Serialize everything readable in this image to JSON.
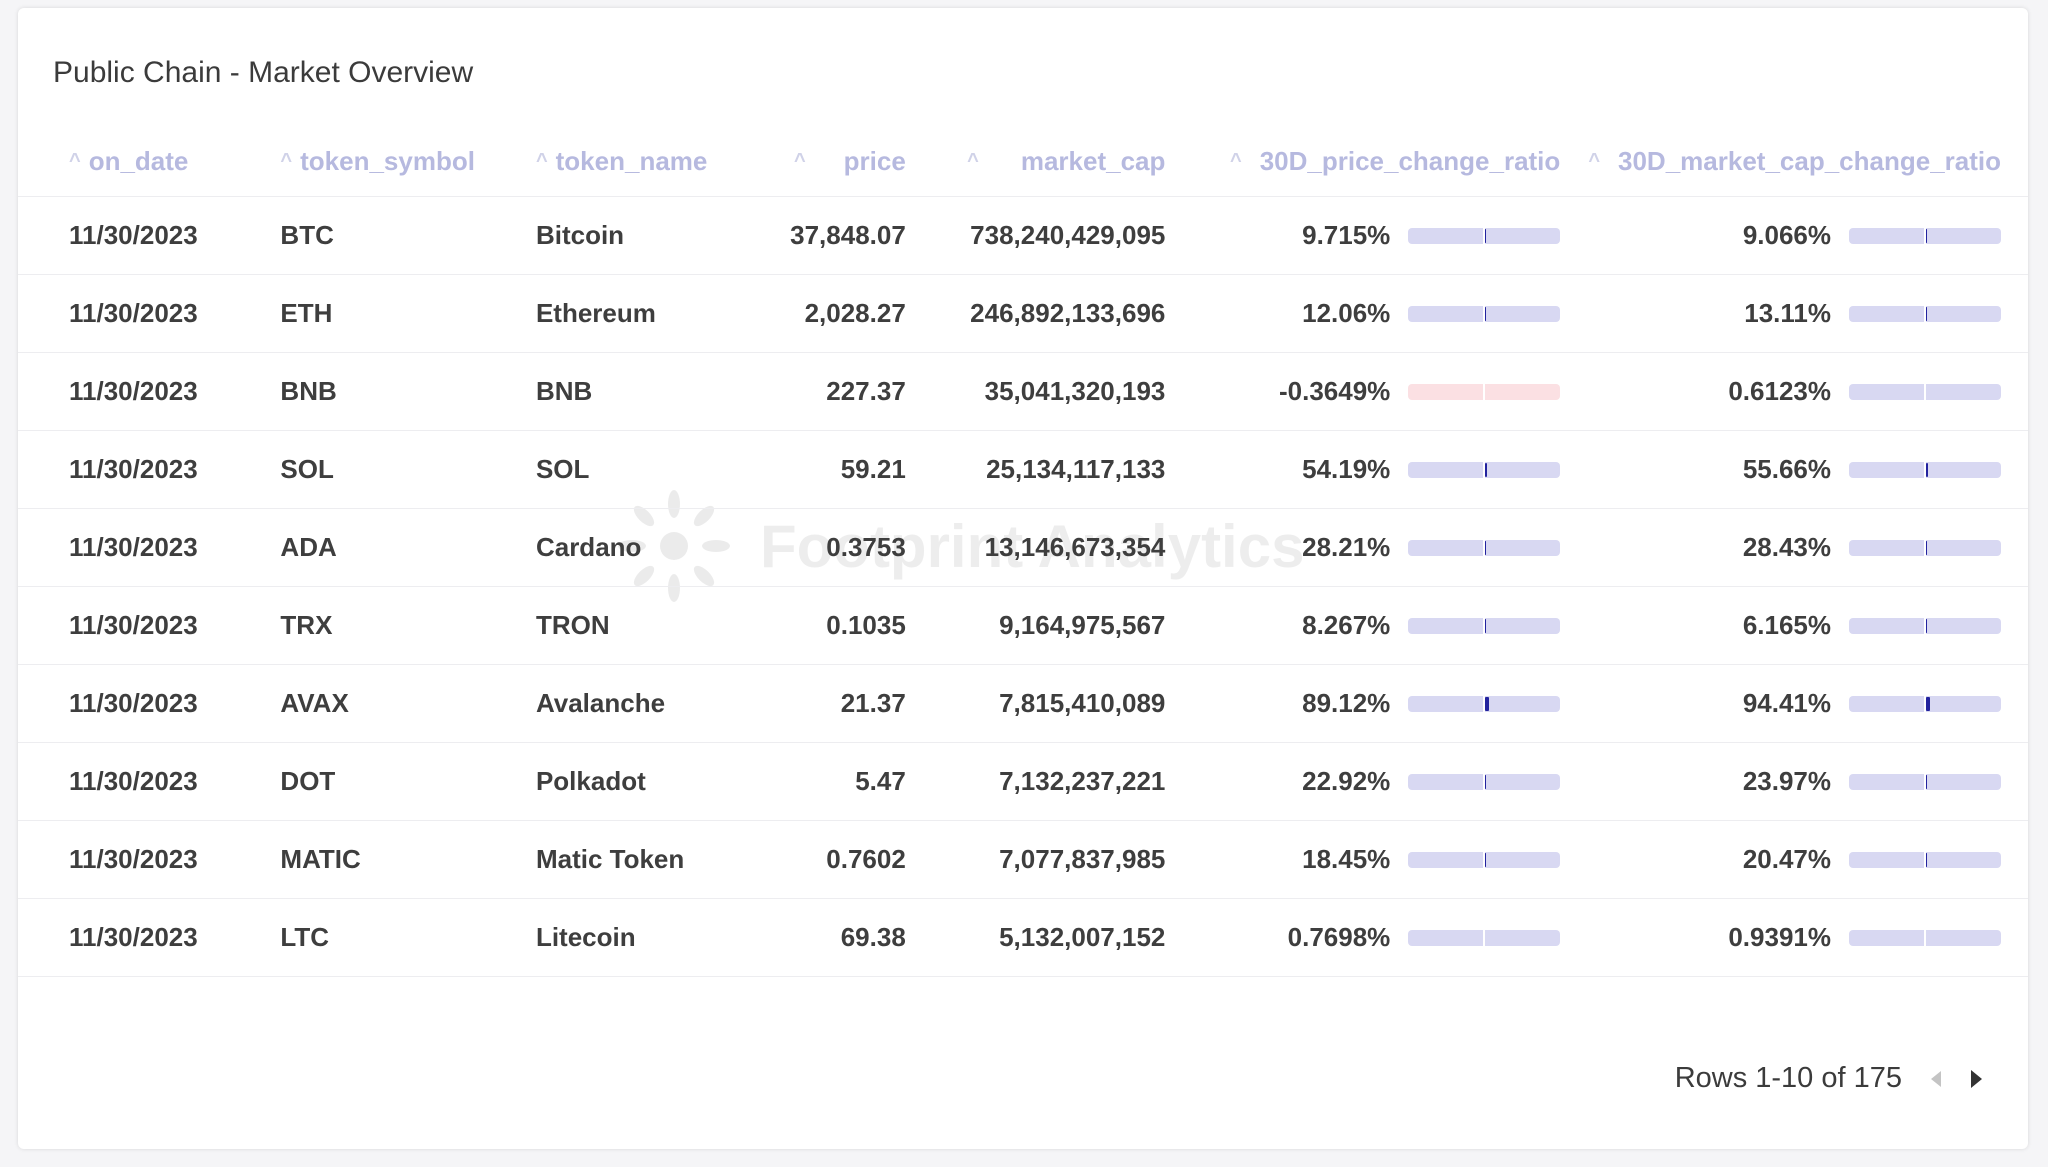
{
  "card": {
    "title": "Public Chain - Market Overview",
    "watermark": "Footprint Analytics"
  },
  "table": {
    "columns": [
      {
        "key": "on_date",
        "label": "on_date"
      },
      {
        "key": "token_symbol",
        "label": "token_symbol"
      },
      {
        "key": "token_name",
        "label": "token_name"
      },
      {
        "key": "price",
        "label": "price"
      },
      {
        "key": "market_cap",
        "label": "market_cap"
      },
      {
        "key": "price_change",
        "label": "30D_price_change_ratio"
      },
      {
        "key": "mcap_change",
        "label": "30D_market_cap_change_ratio"
      }
    ],
    "bar_colors": {
      "positive_track": "#d8d8f2",
      "negative_track": "#fbe0e3",
      "fill": "#23239e"
    },
    "rows": [
      {
        "on_date": "11/30/2023",
        "token_symbol": "BTC",
        "token_name": "Bitcoin",
        "price": "37,848.07",
        "market_cap": "738,240,429,095",
        "price_change": "9.715%",
        "mcap_change": "9.066%",
        "price_change_value": 0.09715,
        "mcap_change_value": 0.09066
      },
      {
        "on_date": "11/30/2023",
        "token_symbol": "ETH",
        "token_name": "Ethereum",
        "price": "2,028.27",
        "market_cap": "246,892,133,696",
        "price_change": "12.06%",
        "mcap_change": "13.11%",
        "price_change_value": 0.1206,
        "mcap_change_value": 0.1311
      },
      {
        "on_date": "11/30/2023",
        "token_symbol": "BNB",
        "token_name": "BNB",
        "price": "227.37",
        "market_cap": "35,041,320,193",
        "price_change": "-0.3649%",
        "mcap_change": "0.6123%",
        "price_change_value": -0.003649,
        "mcap_change_value": 0.006123
      },
      {
        "on_date": "11/30/2023",
        "token_symbol": "SOL",
        "token_name": "SOL",
        "price": "59.21",
        "market_cap": "25,134,117,133",
        "price_change": "54.19%",
        "mcap_change": "55.66%",
        "price_change_value": 0.5419,
        "mcap_change_value": 0.5566
      },
      {
        "on_date": "11/30/2023",
        "token_symbol": "ADA",
        "token_name": "Cardano",
        "price": "0.3753",
        "market_cap": "13,146,673,354",
        "price_change": "28.21%",
        "mcap_change": "28.43%",
        "price_change_value": 0.2821,
        "mcap_change_value": 0.2843
      },
      {
        "on_date": "11/30/2023",
        "token_symbol": "TRX",
        "token_name": "TRON",
        "price": "0.1035",
        "market_cap": "9,164,975,567",
        "price_change": "8.267%",
        "mcap_change": "6.165%",
        "price_change_value": 0.08267,
        "mcap_change_value": 0.06165
      },
      {
        "on_date": "11/30/2023",
        "token_symbol": "AVAX",
        "token_name": "Avalanche",
        "price": "21.37",
        "market_cap": "7,815,410,089",
        "price_change": "89.12%",
        "mcap_change": "94.41%",
        "price_change_value": 0.8912,
        "mcap_change_value": 0.9441
      },
      {
        "on_date": "11/30/2023",
        "token_symbol": "DOT",
        "token_name": "Polkadot",
        "price": "5.47",
        "market_cap": "7,132,237,221",
        "price_change": "22.92%",
        "mcap_change": "23.97%",
        "price_change_value": 0.2292,
        "mcap_change_value": 0.2397
      },
      {
        "on_date": "11/30/2023",
        "token_symbol": "MATIC",
        "token_name": "Matic Token",
        "price": "0.7602",
        "market_cap": "7,077,837,985",
        "price_change": "18.45%",
        "mcap_change": "20.47%",
        "price_change_value": 0.1845,
        "mcap_change_value": 0.2047
      },
      {
        "on_date": "11/30/2023",
        "token_symbol": "LTC",
        "token_name": "Litecoin",
        "price": "69.38",
        "market_cap": "5,132,007,152",
        "price_change": "0.7698%",
        "mcap_change": "0.9391%",
        "price_change_value": 0.007698,
        "mcap_change_value": 0.009391
      }
    ]
  },
  "pagination": {
    "label": "Rows 1-10 of 175"
  }
}
